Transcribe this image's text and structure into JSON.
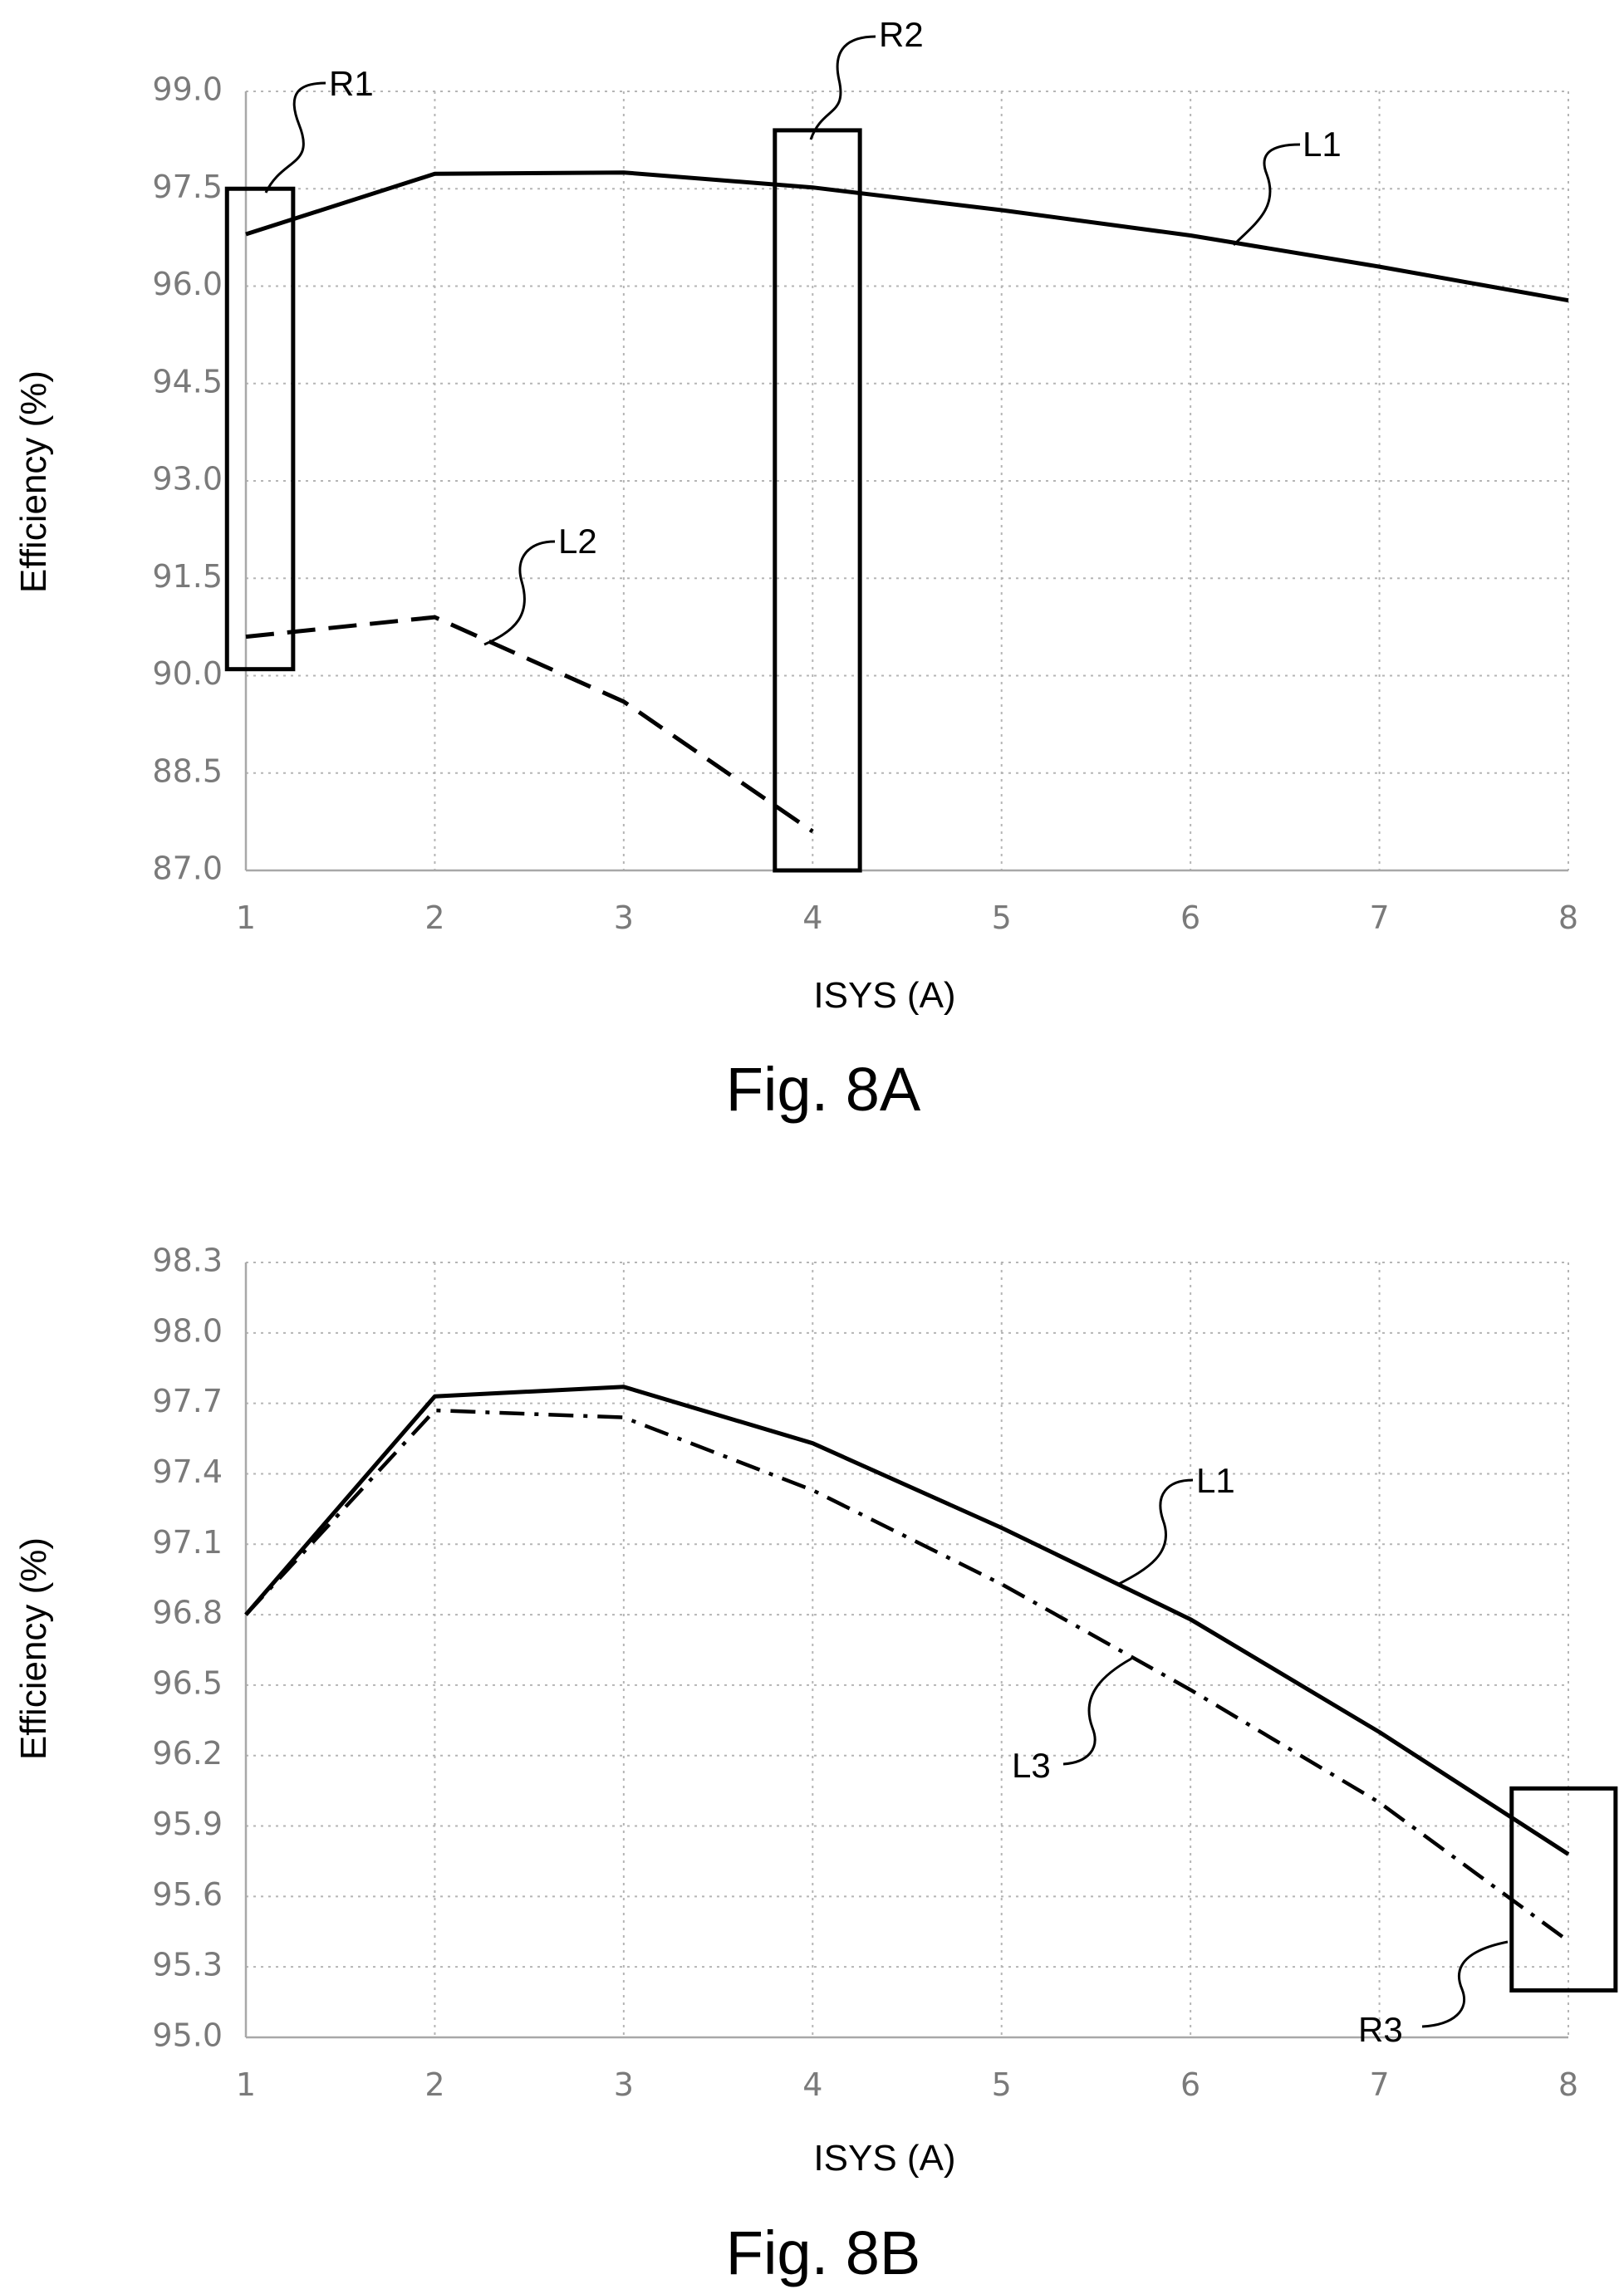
{
  "chart_data": [
    {
      "type": "line",
      "xlabel": "ISYS (A)",
      "ylabel": "Efficiency (%)",
      "caption": "Fig. 8A",
      "xlim": [
        1,
        8
      ],
      "ylim": [
        87.0,
        99.0
      ],
      "x_ticks": [
        "1",
        "2",
        "3",
        "4",
        "5",
        "6",
        "7",
        "8"
      ],
      "y_ticks": [
        "87.0",
        "88.5",
        "90.0",
        "91.5",
        "93.0",
        "94.5",
        "96.0",
        "97.5",
        "99.0"
      ],
      "grid": true,
      "series": [
        {
          "name": "L1",
          "style": "solid",
          "x": [
            1,
            2,
            3,
            4,
            5,
            6,
            7,
            8
          ],
          "values": [
            96.8,
            97.73,
            97.75,
            97.52,
            97.17,
            96.78,
            96.3,
            95.78
          ]
        },
        {
          "name": "L2",
          "style": "dashed",
          "x": [
            1,
            2,
            3,
            4
          ],
          "values": [
            90.6,
            90.9,
            89.6,
            87.6
          ]
        }
      ],
      "regions": [
        {
          "name": "R1",
          "x": [
            0.9,
            1.25
          ],
          "y": [
            90.1,
            97.5
          ]
        },
        {
          "name": "R2",
          "x": [
            3.8,
            4.25
          ],
          "y": [
            87.0,
            98.4
          ]
        }
      ]
    },
    {
      "type": "line",
      "xlabel": "ISYS (A)",
      "ylabel": "Efficiency (%)",
      "caption": "Fig. 8B",
      "xlim": [
        1,
        8
      ],
      "ylim": [
        95.0,
        98.3
      ],
      "x_ticks": [
        "1",
        "2",
        "3",
        "4",
        "5",
        "6",
        "7",
        "8"
      ],
      "y_ticks": [
        "95.0",
        "95.3",
        "95.6",
        "95.9",
        "96.2",
        "96.5",
        "96.8",
        "97.1",
        "97.4",
        "97.7",
        "98.0",
        "98.3"
      ],
      "grid": true,
      "series": [
        {
          "name": "L1",
          "style": "solid",
          "x": [
            1,
            2,
            3,
            4,
            5,
            6,
            7,
            8
          ],
          "values": [
            96.8,
            97.73,
            97.77,
            97.53,
            97.17,
            96.78,
            96.3,
            95.78
          ]
        },
        {
          "name": "L3",
          "style": "dash-dot",
          "x": [
            1,
            2,
            3,
            4,
            5,
            6,
            7,
            8
          ],
          "values": [
            96.8,
            97.67,
            97.64,
            97.33,
            96.93,
            96.48,
            96.0,
            95.41
          ]
        }
      ],
      "regions": [
        {
          "name": "R3",
          "x": [
            7.7,
            8.25
          ],
          "y": [
            95.2,
            96.06
          ]
        }
      ]
    }
  ]
}
